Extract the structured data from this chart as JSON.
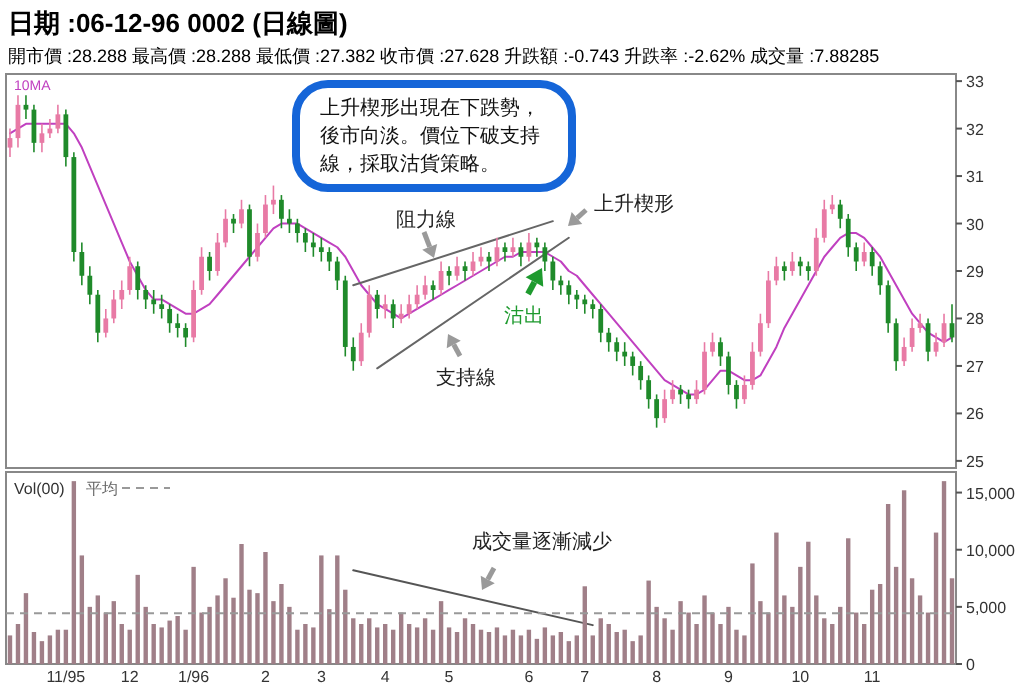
{
  "chart_data": [
    {
      "type": "candlestick",
      "title": "日期 :06-12-96  0002  (日線圖)",
      "subtitle": "開市價 :28.288  最高價 :28.288  最低價 :27.382  收市價 :27.628  升跌額 :-0.743  升跌率 :-2.62%  成交量 :7.88285",
      "categories": [
        null,
        null,
        null,
        null,
        null,
        null,
        null,
        null,
        null,
        null,
        null,
        null,
        null,
        null,
        null,
        null,
        null,
        null,
        null,
        null,
        null,
        null,
        null,
        null,
        null,
        null,
        null,
        null,
        null,
        null,
        null,
        null,
        null,
        null,
        null,
        null,
        null,
        null,
        null,
        null,
        null,
        null,
        null,
        null,
        null,
        null,
        null,
        null,
        null,
        null,
        null,
        null,
        null,
        null,
        null,
        null,
        null,
        null,
        null,
        null,
        null,
        null,
        null,
        null,
        null,
        null,
        null,
        null,
        null,
        null,
        null,
        null,
        null,
        null,
        null,
        null,
        null,
        null,
        null,
        null,
        null,
        null,
        null,
        null,
        null,
        null,
        null,
        null,
        null,
        null,
        null,
        null,
        null,
        null,
        null,
        null,
        null,
        null,
        null,
        null,
        null,
        null,
        null,
        null,
        null,
        null,
        null,
        null,
        null,
        null,
        null,
        null,
        null,
        null,
        null,
        null,
        null,
        null,
        null
      ],
      "ylim": [
        24.85,
        33.15
      ],
      "yticks": [
        25,
        26,
        27,
        28,
        29,
        30,
        31,
        32,
        33
      ],
      "tick_labels": "y",
      "legend": "top left",
      "ohlc": [
        [
          31.6,
          32.0,
          31.4,
          31.8
        ],
        [
          31.8,
          32.7,
          31.6,
          32.5
        ],
        [
          32.5,
          32.7,
          32.2,
          32.4
        ],
        [
          32.4,
          32.5,
          31.5,
          31.7
        ],
        [
          31.7,
          32.1,
          31.5,
          31.9
        ],
        [
          31.9,
          32.2,
          31.8,
          32.0
        ],
        [
          32.0,
          32.5,
          31.9,
          32.3
        ],
        [
          32.3,
          32.4,
          31.2,
          31.4
        ],
        [
          31.4,
          31.5,
          29.2,
          29.4
        ],
        [
          29.4,
          29.6,
          28.7,
          28.9
        ],
        [
          28.9,
          29.1,
          28.3,
          28.5
        ],
        [
          28.5,
          28.6,
          27.5,
          27.7
        ],
        [
          27.7,
          28.2,
          27.6,
          28.0
        ],
        [
          28.0,
          28.6,
          27.9,
          28.4
        ],
        [
          28.4,
          28.8,
          28.2,
          28.6
        ],
        [
          28.6,
          29.3,
          28.5,
          29.1
        ],
        [
          29.1,
          29.2,
          28.4,
          28.6
        ],
        [
          28.6,
          28.7,
          28.2,
          28.4
        ],
        [
          28.4,
          28.6,
          28.1,
          28.3
        ],
        [
          28.3,
          28.5,
          28.0,
          28.2
        ],
        [
          28.2,
          28.3,
          27.7,
          27.9
        ],
        [
          27.9,
          28.1,
          27.6,
          27.8
        ],
        [
          27.8,
          27.9,
          27.4,
          27.6
        ],
        [
          27.6,
          28.8,
          27.5,
          28.6
        ],
        [
          28.6,
          29.5,
          28.5,
          29.3
        ],
        [
          29.3,
          29.4,
          28.8,
          29.0
        ],
        [
          29.0,
          29.8,
          28.9,
          29.6
        ],
        [
          29.6,
          30.3,
          29.5,
          30.1
        ],
        [
          30.1,
          30.2,
          29.8,
          30.0
        ],
        [
          30.0,
          30.5,
          29.9,
          30.3
        ],
        [
          30.3,
          30.4,
          29.1,
          29.3
        ],
        [
          29.3,
          30.0,
          29.2,
          29.8
        ],
        [
          29.8,
          30.6,
          29.7,
          30.4
        ],
        [
          30.4,
          30.8,
          30.2,
          30.5
        ],
        [
          30.5,
          30.6,
          29.9,
          30.1
        ],
        [
          30.1,
          30.3,
          29.8,
          30.0
        ],
        [
          30.0,
          30.1,
          29.6,
          29.8
        ],
        [
          29.8,
          29.9,
          29.4,
          29.6
        ],
        [
          29.6,
          29.8,
          29.3,
          29.5
        ],
        [
          29.5,
          29.7,
          29.2,
          29.4
        ],
        [
          29.4,
          29.5,
          29.0,
          29.2
        ],
        [
          29.2,
          29.3,
          28.6,
          28.8
        ],
        [
          28.8,
          28.9,
          27.2,
          27.4
        ],
        [
          27.4,
          27.6,
          26.9,
          27.1
        ],
        [
          27.1,
          27.9,
          27.0,
          27.7
        ],
        [
          27.7,
          28.7,
          27.6,
          28.5
        ],
        [
          28.5,
          28.6,
          28.0,
          28.2
        ],
        [
          28.2,
          28.5,
          28.0,
          28.3
        ],
        [
          28.3,
          28.4,
          27.8,
          28.0
        ],
        [
          28.0,
          28.3,
          27.9,
          28.1
        ],
        [
          28.1,
          28.5,
          28.0,
          28.3
        ],
        [
          28.3,
          28.7,
          28.2,
          28.5
        ],
        [
          28.5,
          28.9,
          28.4,
          28.7
        ],
        [
          28.7,
          28.8,
          28.4,
          28.6
        ],
        [
          28.6,
          29.2,
          28.5,
          29.0
        ],
        [
          29.0,
          29.1,
          28.7,
          28.9
        ],
        [
          28.9,
          29.3,
          28.8,
          29.1
        ],
        [
          29.1,
          29.2,
          28.8,
          29.0
        ],
        [
          29.0,
          29.4,
          28.9,
          29.2
        ],
        [
          29.2,
          29.5,
          29.1,
          29.3
        ],
        [
          29.3,
          29.4,
          29.0,
          29.2
        ],
        [
          29.2,
          29.7,
          29.1,
          29.5
        ],
        [
          29.5,
          29.6,
          29.2,
          29.4
        ],
        [
          29.4,
          29.7,
          29.3,
          29.5
        ],
        [
          29.5,
          29.6,
          29.1,
          29.3
        ],
        [
          29.3,
          29.8,
          29.2,
          29.6
        ],
        [
          29.6,
          29.7,
          29.3,
          29.5
        ],
        [
          29.5,
          29.6,
          29.0,
          29.2
        ],
        [
          29.2,
          29.3,
          28.6,
          28.8
        ],
        [
          28.8,
          28.9,
          28.5,
          28.7
        ],
        [
          28.7,
          28.8,
          28.3,
          28.5
        ],
        [
          28.5,
          28.6,
          28.2,
          28.4
        ],
        [
          28.4,
          28.5,
          28.1,
          28.3
        ],
        [
          28.3,
          28.4,
          28.0,
          28.2
        ],
        [
          28.2,
          28.3,
          27.5,
          27.7
        ],
        [
          27.7,
          27.8,
          27.3,
          27.5
        ],
        [
          27.5,
          27.6,
          27.1,
          27.3
        ],
        [
          27.3,
          27.5,
          27.0,
          27.2
        ],
        [
          27.2,
          27.3,
          26.8,
          27.0
        ],
        [
          27.0,
          27.1,
          26.5,
          26.7
        ],
        [
          26.7,
          26.8,
          26.1,
          26.3
        ],
        [
          26.3,
          26.4,
          25.7,
          25.9
        ],
        [
          25.9,
          26.5,
          25.8,
          26.3
        ],
        [
          26.3,
          26.7,
          26.2,
          26.5
        ],
        [
          26.5,
          26.6,
          26.2,
          26.4
        ],
        [
          26.4,
          26.5,
          26.1,
          26.3
        ],
        [
          26.3,
          26.7,
          26.2,
          26.5
        ],
        [
          26.5,
          27.5,
          26.4,
          27.3
        ],
        [
          27.3,
          27.7,
          27.2,
          27.5
        ],
        [
          27.5,
          27.6,
          27.0,
          27.2
        ],
        [
          27.2,
          27.3,
          26.4,
          26.6
        ],
        [
          26.6,
          26.7,
          26.1,
          26.3
        ],
        [
          26.3,
          26.8,
          26.2,
          26.6
        ],
        [
          26.6,
          27.5,
          26.5,
          27.3
        ],
        [
          27.3,
          28.1,
          27.2,
          27.9
        ],
        [
          27.9,
          29.0,
          27.8,
          28.8
        ],
        [
          28.8,
          29.3,
          28.7,
          29.1
        ],
        [
          29.1,
          29.2,
          28.8,
          29.0
        ],
        [
          29.0,
          29.4,
          28.9,
          29.2
        ],
        [
          29.2,
          29.3,
          28.9,
          29.1
        ],
        [
          29.1,
          29.2,
          28.8,
          29.0
        ],
        [
          29.0,
          29.9,
          28.9,
          29.7
        ],
        [
          29.7,
          30.5,
          29.6,
          30.3
        ],
        [
          30.3,
          30.6,
          30.2,
          30.4
        ],
        [
          30.4,
          30.5,
          29.9,
          30.1
        ],
        [
          30.1,
          30.2,
          29.3,
          29.5
        ],
        [
          29.5,
          29.6,
          29.0,
          29.2
        ],
        [
          29.2,
          29.6,
          29.1,
          29.4
        ],
        [
          29.4,
          29.5,
          28.9,
          29.1
        ],
        [
          29.1,
          29.2,
          28.5,
          28.7
        ],
        [
          28.7,
          28.8,
          27.7,
          27.9
        ],
        [
          27.9,
          28.0,
          26.9,
          27.1
        ],
        [
          27.1,
          27.6,
          27.0,
          27.4
        ],
        [
          27.4,
          28.0,
          27.3,
          27.8
        ],
        [
          27.8,
          28.1,
          27.7,
          27.9
        ],
        [
          27.9,
          28.0,
          27.1,
          27.3
        ],
        [
          27.3,
          27.7,
          27.2,
          27.5
        ],
        [
          27.5,
          28.1,
          27.4,
          27.9
        ],
        [
          27.9,
          28.3,
          27.5,
          27.6
        ]
      ],
      "series": [
        {
          "name": "10MA",
          "type": "line",
          "color": "#c040c0",
          "values": [
            31.9,
            32.0,
            32.1,
            32.1,
            32.1,
            32.1,
            32.1,
            32.1,
            31.9,
            31.6,
            31.2,
            30.8,
            30.4,
            30.0,
            29.6,
            29.2,
            28.9,
            28.6,
            28.4,
            28.4,
            28.3,
            28.2,
            28.1,
            28.1,
            28.2,
            28.3,
            28.5,
            28.7,
            28.9,
            29.1,
            29.3,
            29.5,
            29.7,
            29.9,
            30.0,
            30.0,
            30.0,
            29.9,
            29.8,
            29.7,
            29.6,
            29.5,
            29.3,
            29.0,
            28.7,
            28.5,
            28.3,
            28.2,
            28.1,
            28.0,
            28.1,
            28.2,
            28.3,
            28.4,
            28.5,
            28.6,
            28.7,
            28.8,
            28.9,
            29.0,
            29.1,
            29.2,
            29.3,
            29.3,
            29.4,
            29.4,
            29.4,
            29.4,
            29.3,
            29.2,
            29.0,
            28.9,
            28.7,
            28.5,
            28.3,
            28.1,
            27.9,
            27.7,
            27.5,
            27.3,
            27.1,
            26.9,
            26.7,
            26.6,
            26.5,
            26.4,
            26.4,
            26.5,
            26.7,
            26.9,
            26.9,
            26.8,
            26.7,
            26.7,
            26.8,
            27.1,
            27.4,
            27.8,
            28.1,
            28.4,
            28.7,
            29.0,
            29.3,
            29.5,
            29.7,
            29.8,
            29.8,
            29.7,
            29.5,
            29.3,
            29.0,
            28.7,
            28.4,
            28.1,
            27.9,
            27.7,
            27.6,
            27.5,
            27.6
          ]
        },
        {
          "type": "line",
          "color": "#666666",
          "values": [
            null,
            null,
            null,
            null,
            null,
            null,
            null,
            null,
            null,
            null,
            null,
            null,
            null,
            null,
            null,
            null,
            null,
            null,
            null,
            null,
            null,
            null,
            null,
            null,
            null,
            null,
            null,
            null,
            null,
            null,
            null,
            null,
            null,
            null,
            null,
            null,
            null,
            null,
            null,
            null,
            null,
            null,
            null,
            28.7,
            null,
            null,
            null,
            null,
            null,
            null,
            null,
            null,
            null,
            null,
            null,
            null,
            null,
            null,
            null,
            null,
            null,
            null,
            null,
            null,
            null,
            null,
            null,
            null,
            30.05,
            null,
            null,
            null,
            null,
            null,
            null,
            null,
            null,
            null,
            null,
            null,
            null,
            null,
            null,
            null,
            null,
            null,
            null,
            null,
            null,
            null,
            null,
            null,
            null,
            null,
            null,
            null,
            null,
            null,
            null,
            null,
            null,
            null,
            null,
            null,
            null,
            null,
            null,
            null,
            null,
            null,
            null,
            null,
            null,
            null,
            null,
            null,
            null,
            null,
            null
          ]
        },
        {
          "type": "line",
          "color": "#666666",
          "values": [
            null,
            null,
            null,
            null,
            null,
            null,
            null,
            null,
            null,
            null,
            null,
            null,
            null,
            null,
            null,
            null,
            null,
            null,
            null,
            null,
            null,
            null,
            null,
            null,
            null,
            null,
            null,
            null,
            null,
            null,
            null,
            null,
            null,
            null,
            null,
            null,
            null,
            null,
            null,
            null,
            null,
            null,
            null,
            null,
            null,
            null,
            26.95,
            null,
            null,
            null,
            null,
            null,
            null,
            null,
            null,
            null,
            null,
            null,
            null,
            null,
            null,
            null,
            null,
            null,
            null,
            null,
            null,
            null,
            null,
            null,
            29.7,
            null,
            null,
            null,
            null,
            null,
            null,
            null,
            null,
            null,
            null,
            null,
            null,
            null,
            null,
            null,
            null,
            null,
            null,
            null,
            null,
            null,
            null,
            null,
            null,
            null,
            null,
            null,
            null,
            null,
            null,
            null,
            null,
            null,
            null,
            null,
            null,
            null,
            null,
            null,
            null,
            null,
            null,
            null,
            null,
            null,
            null,
            null,
            null
          ]
        }
      ],
      "annotations": [
        "上升楔形出現在下跌勢，後市向淡。價位下破支持線，採取沽貨策略。",
        "阻力線",
        "上升楔形",
        "支持線",
        "沽出"
      ]
    },
    {
      "type": "bar",
      "ylabel": "Vol(00)",
      "color": "#a07f88",
      "categories": [
        null,
        null,
        null,
        null,
        null,
        null,
        null,
        "11/95",
        null,
        null,
        null,
        null,
        null,
        null,
        null,
        "12",
        null,
        null,
        null,
        null,
        null,
        null,
        null,
        "1/96",
        null,
        null,
        null,
        null,
        null,
        null,
        null,
        null,
        "2",
        null,
        null,
        null,
        null,
        null,
        null,
        "3",
        null,
        null,
        null,
        null,
        null,
        null,
        null,
        "4",
        null,
        null,
        null,
        null,
        null,
        null,
        null,
        "5",
        null,
        null,
        null,
        null,
        null,
        null,
        null,
        null,
        null,
        "6",
        null,
        null,
        null,
        null,
        null,
        null,
        "7",
        null,
        null,
        null,
        null,
        null,
        null,
        null,
        null,
        "8",
        null,
        null,
        null,
        null,
        null,
        null,
        null,
        null,
        "9",
        null,
        null,
        null,
        null,
        null,
        null,
        null,
        null,
        "10",
        null,
        null,
        null,
        null,
        null,
        null,
        null,
        null,
        "11",
        null,
        null,
        null,
        null,
        null,
        null,
        null,
        null,
        null,
        null
      ],
      "values": [
        2500,
        3500,
        6200,
        2800,
        2000,
        2500,
        3000,
        3000,
        16000,
        9500,
        5000,
        6000,
        4500,
        5500,
        3500,
        3000,
        7800,
        5000,
        3500,
        3200,
        3800,
        4200,
        3000,
        8500,
        4500,
        5000,
        6000,
        7500,
        5800,
        10500,
        6500,
        6200,
        9800,
        5500,
        7000,
        5000,
        3000,
        3500,
        3200,
        9500,
        4800,
        9500,
        6500,
        4000,
        3500,
        4000,
        3200,
        3500,
        3000,
        4500,
        3500,
        3200,
        4000,
        3000,
        5500,
        3200,
        2800,
        4000,
        3500,
        3000,
        2800,
        3200,
        2500,
        3000,
        2500,
        3000,
        2200,
        3200,
        2500,
        2800,
        2000,
        2500,
        6800,
        2500,
        4000,
        3500,
        2800,
        3000,
        2000,
        2500,
        7300,
        5000,
        4000,
        3000,
        5500,
        4500,
        3500,
        6000,
        4500,
        3500,
        5000,
        3000,
        2500,
        8800,
        5500,
        4500,
        11500,
        6000,
        5000,
        8500,
        10700,
        6000,
        4000,
        3500,
        5000,
        11000,
        4500,
        3500,
        6500,
        7000,
        14000,
        8500,
        15200,
        7500,
        6000,
        4500,
        11500,
        16000,
        7500
      ],
      "ylim": [
        0,
        16800
      ],
      "yticks": [
        {
          "value": 0,
          "label": "0"
        },
        {
          "value": 5000,
          "label": "5,000"
        },
        {
          "value": 10000,
          "label": "10,000"
        },
        {
          "value": 15000,
          "label": "15,000"
        }
      ],
      "ref_lines": [
        {
          "axis": "y",
          "value": 4450,
          "label": "平均",
          "color": "#999999",
          "line_style": "dashed"
        }
      ],
      "series": [
        {
          "type": "line",
          "color": "#555555",
          "values": [
            null,
            null,
            null,
            null,
            null,
            null,
            null,
            null,
            null,
            null,
            null,
            null,
            null,
            null,
            null,
            null,
            null,
            null,
            null,
            null,
            null,
            null,
            null,
            null,
            null,
            null,
            null,
            null,
            null,
            null,
            null,
            null,
            null,
            null,
            null,
            null,
            null,
            null,
            null,
            null,
            null,
            null,
            null,
            8200,
            null,
            null,
            null,
            null,
            null,
            null,
            null,
            null,
            null,
            null,
            null,
            null,
            null,
            null,
            null,
            null,
            null,
            null,
            null,
            null,
            null,
            null,
            null,
            null,
            null,
            null,
            null,
            null,
            null,
            3400,
            null,
            null,
            null,
            null,
            null,
            null,
            null,
            null,
            null,
            null,
            null,
            null,
            null,
            null,
            null,
            null,
            null,
            null,
            null,
            null,
            null,
            null,
            null,
            null,
            null,
            null,
            null,
            null,
            null,
            null,
            null,
            null,
            null,
            null,
            null,
            null,
            null,
            null,
            null,
            null,
            null,
            null,
            null,
            null,
            null
          ]
        }
      ],
      "annotations": [
        "成交量逐漸減少"
      ]
    }
  ]
}
